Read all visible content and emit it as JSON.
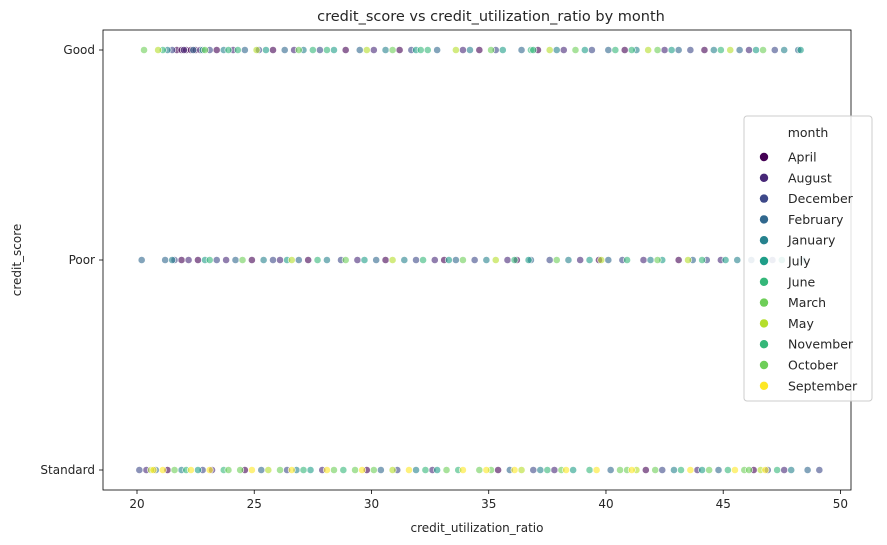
{
  "chart_data": {
    "type": "scatter",
    "title": "credit_score vs credit_utilization_ratio by month",
    "xlabel": "credit_utilization_ratio",
    "ylabel": "credit_score",
    "xlim": [
      18.55,
      50.45
    ],
    "xticks": [
      20,
      25,
      30,
      35,
      40,
      45,
      50
    ],
    "categories": [
      "Good",
      "Poor",
      "Standard"
    ],
    "grid": false,
    "legend": {
      "title": "month",
      "placement": "right"
    },
    "series": [
      {
        "name": "April",
        "color": "#440154",
        "points": [
          [
            "Good",
            21.7
          ],
          [
            "Good",
            21.9
          ],
          [
            "Good",
            22.1
          ],
          [
            "Good",
            22.3
          ],
          [
            "Good",
            22.5
          ],
          [
            "Good",
            23.4
          ],
          [
            "Good",
            25.8
          ],
          [
            "Good",
            28.9
          ],
          [
            "Good",
            31.2
          ],
          [
            "Good",
            34.6
          ],
          [
            "Good",
            37.1
          ],
          [
            "Good",
            40.8
          ],
          [
            "Good",
            44.2
          ],
          [
            "Poor",
            21.9
          ],
          [
            "Poor",
            22.6
          ],
          [
            "Poor",
            24.9
          ],
          [
            "Poor",
            27.3
          ],
          [
            "Poor",
            30.6
          ],
          [
            "Poor",
            33.1
          ],
          [
            "Poor",
            36.2
          ],
          [
            "Poor",
            39.7
          ],
          [
            "Poor",
            43.1
          ],
          [
            "Standard",
            21.3
          ],
          [
            "Standard",
            24.6
          ],
          [
            "Standard",
            29.8
          ],
          [
            "Standard",
            35.4
          ],
          [
            "Standard",
            41.7
          ],
          [
            "Standard",
            46.3
          ]
        ]
      },
      {
        "name": "August",
        "color": "#482878",
        "points": [
          [
            "Good",
            22.0
          ],
          [
            "Good",
            22.7
          ],
          [
            "Good",
            24.1
          ],
          [
            "Good",
            26.7
          ],
          [
            "Good",
            30.1
          ],
          [
            "Good",
            33.9
          ],
          [
            "Good",
            38.2
          ],
          [
            "Good",
            42.5
          ],
          [
            "Good",
            46.1
          ],
          [
            "Poor",
            22.2
          ],
          [
            "Poor",
            23.8
          ],
          [
            "Poor",
            26.1
          ],
          [
            "Poor",
            29.4
          ],
          [
            "Poor",
            32.7
          ],
          [
            "Poor",
            35.8
          ],
          [
            "Poor",
            38.9
          ],
          [
            "Poor",
            41.6
          ],
          [
            "Poor",
            44.9
          ],
          [
            "Standard",
            20.4
          ],
          [
            "Standard",
            23.2
          ],
          [
            "Standard",
            27.9
          ],
          [
            "Standard",
            32.6
          ],
          [
            "Standard",
            37.8
          ],
          [
            "Standard",
            43.9
          ],
          [
            "Standard",
            47.6
          ]
        ]
      },
      {
        "name": "December",
        "color": "#3e4989",
        "points": [
          [
            "Good",
            21.5
          ],
          [
            "Good",
            23.1
          ],
          [
            "Good",
            25.2
          ],
          [
            "Good",
            27.8
          ],
          [
            "Good",
            31.7
          ],
          [
            "Good",
            35.3
          ],
          [
            "Good",
            39.4
          ],
          [
            "Good",
            43.6
          ],
          [
            "Good",
            47.2
          ],
          [
            "Poor",
            21.6
          ],
          [
            "Poor",
            23.4
          ],
          [
            "Poor",
            25.8
          ],
          [
            "Poor",
            28.7
          ],
          [
            "Poor",
            31.9
          ],
          [
            "Poor",
            34.4
          ],
          [
            "Poor",
            37.6
          ],
          [
            "Poor",
            40.7
          ],
          [
            "Poor",
            44.3
          ],
          [
            "Poor",
            47.1
          ],
          [
            "Standard",
            20.1
          ],
          [
            "Standard",
            22.8
          ],
          [
            "Standard",
            26.4
          ],
          [
            "Standard",
            31.1
          ],
          [
            "Standard",
            36.9
          ],
          [
            "Standard",
            42.4
          ],
          [
            "Standard",
            46.9
          ],
          [
            "Standard",
            49.1
          ]
        ]
      },
      {
        "name": "February",
        "color": "#31688e",
        "points": [
          [
            "Good",
            22.4
          ],
          [
            "Good",
            24.6
          ],
          [
            "Good",
            26.3
          ],
          [
            "Good",
            29.5
          ],
          [
            "Good",
            32.8
          ],
          [
            "Good",
            36.4
          ],
          [
            "Good",
            40.1
          ],
          [
            "Good",
            43.1
          ],
          [
            "Good",
            45.7
          ],
          [
            "Good",
            48.2
          ],
          [
            "Poor",
            20.2
          ],
          [
            "Poor",
            21.2
          ],
          [
            "Poor",
            24.2
          ],
          [
            "Poor",
            26.9
          ],
          [
            "Poor",
            30.2
          ],
          [
            "Poor",
            33.6
          ],
          [
            "Poor",
            36.8
          ],
          [
            "Poor",
            40.1
          ],
          [
            "Poor",
            43.7
          ],
          [
            "Poor",
            46.2
          ],
          [
            "Standard",
            20.8
          ],
          [
            "Standard",
            25.3
          ],
          [
            "Standard",
            30.4
          ],
          [
            "Standard",
            35.9
          ],
          [
            "Standard",
            40.2
          ],
          [
            "Standard",
            44.8
          ],
          [
            "Standard",
            48.6
          ]
        ]
      },
      {
        "name": "January",
        "color": "#26828e",
        "points": [
          [
            "Good",
            21.3
          ],
          [
            "Good",
            23.7
          ],
          [
            "Good",
            27.1
          ],
          [
            "Good",
            30.6
          ],
          [
            "Good",
            34.2
          ],
          [
            "Good",
            37.9
          ],
          [
            "Good",
            41.3
          ],
          [
            "Good",
            44.6
          ],
          [
            "Good",
            47.6
          ],
          [
            "Poor",
            21.5
          ],
          [
            "Poor",
            25.4
          ],
          [
            "Poor",
            28.1
          ],
          [
            "Poor",
            31.4
          ],
          [
            "Poor",
            34.9
          ],
          [
            "Poor",
            38.4
          ],
          [
            "Poor",
            41.9
          ],
          [
            "Poor",
            45.6
          ],
          [
            "Poor",
            48.4
          ],
          [
            "Standard",
            21.9
          ],
          [
            "Standard",
            26.8
          ],
          [
            "Standard",
            31.9
          ],
          [
            "Standard",
            37.2
          ],
          [
            "Standard",
            42.9
          ],
          [
            "Standard",
            47.9
          ]
        ]
      },
      {
        "name": "July",
        "color": "#1f9e89",
        "points": [
          [
            "Good",
            22.8
          ],
          [
            "Good",
            25.5
          ],
          [
            "Good",
            28.4
          ],
          [
            "Good",
            31.9
          ],
          [
            "Good",
            35.6
          ],
          [
            "Good",
            39.1
          ],
          [
            "Good",
            42.8
          ],
          [
            "Good",
            46.4
          ],
          [
            "Good",
            48.3
          ],
          [
            "Poor",
            22.9
          ],
          [
            "Poor",
            26.4
          ],
          [
            "Poor",
            29.7
          ],
          [
            "Poor",
            33.3
          ],
          [
            "Poor",
            36.7
          ],
          [
            "Poor",
            39.3
          ],
          [
            "Poor",
            42.4
          ],
          [
            "Poor",
            45.1
          ],
          [
            "Poor",
            47.5
          ],
          [
            "Standard",
            22.6
          ],
          [
            "Standard",
            27.4
          ],
          [
            "Standard",
            32.8
          ],
          [
            "Standard",
            38.6
          ],
          [
            "Standard",
            44.1
          ]
        ]
      },
      {
        "name": "June",
        "color": "#35b779",
        "points": [
          [
            "Good",
            21.1
          ],
          [
            "Good",
            24.3
          ],
          [
            "Good",
            28.1
          ],
          [
            "Good",
            32.4
          ],
          [
            "Good",
            36.8
          ],
          [
            "Good",
            40.4
          ],
          [
            "Good",
            44.9
          ],
          [
            "Poor",
            23.1
          ],
          [
            "Poor",
            27.7
          ],
          [
            "Poor",
            32.2
          ],
          [
            "Poor",
            36.1
          ],
          [
            "Poor",
            40.9
          ],
          [
            "Poor",
            44.1
          ],
          [
            "Standard",
            23.7
          ],
          [
            "Standard",
            28.8
          ],
          [
            "Standard",
            33.7
          ],
          [
            "Standard",
            39.3
          ],
          [
            "Standard",
            45.2
          ]
        ]
      },
      {
        "name": "March",
        "color": "#6ece58",
        "points": [
          [
            "Good",
            20.3
          ],
          [
            "Good",
            22.9
          ],
          [
            "Good",
            26.9
          ],
          [
            "Good",
            30.9
          ],
          [
            "Good",
            35.1
          ],
          [
            "Good",
            38.7
          ],
          [
            "Good",
            42.2
          ],
          [
            "Good",
            46.7
          ],
          [
            "Poor",
            24.5
          ],
          [
            "Poor",
            28.9
          ],
          [
            "Poor",
            33.9
          ],
          [
            "Poor",
            37.9
          ],
          [
            "Poor",
            42.2
          ],
          [
            "Poor",
            46.8
          ],
          [
            "Standard",
            24.4
          ],
          [
            "Standard",
            29.3
          ],
          [
            "Standard",
            34.6
          ],
          [
            "Standard",
            40.6
          ],
          [
            "Standard",
            45.9
          ]
        ]
      },
      {
        "name": "May",
        "color": "#b5de2b",
        "points": [
          [
            "Good",
            20.9
          ],
          [
            "Good",
            25.1
          ],
          [
            "Good",
            29.8
          ],
          [
            "Good",
            33.6
          ],
          [
            "Good",
            37.6
          ],
          [
            "Good",
            41.8
          ],
          [
            "Good",
            45.3
          ],
          [
            "Poor",
            26.6
          ],
          [
            "Poor",
            30.9
          ],
          [
            "Poor",
            35.3
          ],
          [
            "Poor",
            39.8
          ],
          [
            "Poor",
            43.5
          ],
          [
            "Standard",
            20.6
          ],
          [
            "Standard",
            25.6
          ],
          [
            "Standard",
            30.9
          ],
          [
            "Standard",
            36.4
          ],
          [
            "Standard",
            41.3
          ],
          [
            "Standard",
            46.6
          ]
        ]
      },
      {
        "name": "November",
        "color": "#35b779",
        "points": [
          [
            "Good",
            23.9
          ],
          [
            "Good",
            27.5
          ],
          [
            "Good",
            32.1
          ],
          [
            "Good",
            36.9
          ],
          [
            "Good",
            41.1
          ],
          [
            "Standard",
            22.1
          ],
          [
            "Standard",
            27.1
          ],
          [
            "Standard",
            32.3
          ],
          [
            "Standard",
            37.5
          ],
          [
            "Standard",
            43.2
          ],
          [
            "Standard",
            47.3
          ]
        ]
      },
      {
        "name": "October",
        "color": "#6ece58",
        "points": [
          [
            "Standard",
            21.6
          ],
          [
            "Standard",
            23.9
          ],
          [
            "Standard",
            26.1
          ],
          [
            "Standard",
            28.4
          ],
          [
            "Standard",
            30.1
          ],
          [
            "Standard",
            33.2
          ],
          [
            "Standard",
            35.1
          ],
          [
            "Standard",
            38.1
          ],
          [
            "Standard",
            40.9
          ],
          [
            "Standard",
            42.1
          ],
          [
            "Standard",
            44.4
          ],
          [
            "Standard",
            46.1
          ]
        ]
      },
      {
        "name": "September",
        "color": "#fde725",
        "points": [
          [
            "Standard",
            20.7
          ],
          [
            "Standard",
            21.1
          ],
          [
            "Standard",
            22.3
          ],
          [
            "Standard",
            23.1
          ],
          [
            "Standard",
            24.9
          ],
          [
            "Standard",
            26.6
          ],
          [
            "Standard",
            28.1
          ],
          [
            "Standard",
            29.6
          ],
          [
            "Standard",
            31.6
          ],
          [
            "Standard",
            33.9
          ],
          [
            "Standard",
            34.9
          ],
          [
            "Standard",
            36.1
          ],
          [
            "Standard",
            38.3
          ],
          [
            "Standard",
            39.6
          ],
          [
            "Standard",
            41.1
          ],
          [
            "Standard",
            43.6
          ],
          [
            "Standard",
            45.5
          ],
          [
            "Standard",
            46.8
          ]
        ]
      }
    ]
  }
}
